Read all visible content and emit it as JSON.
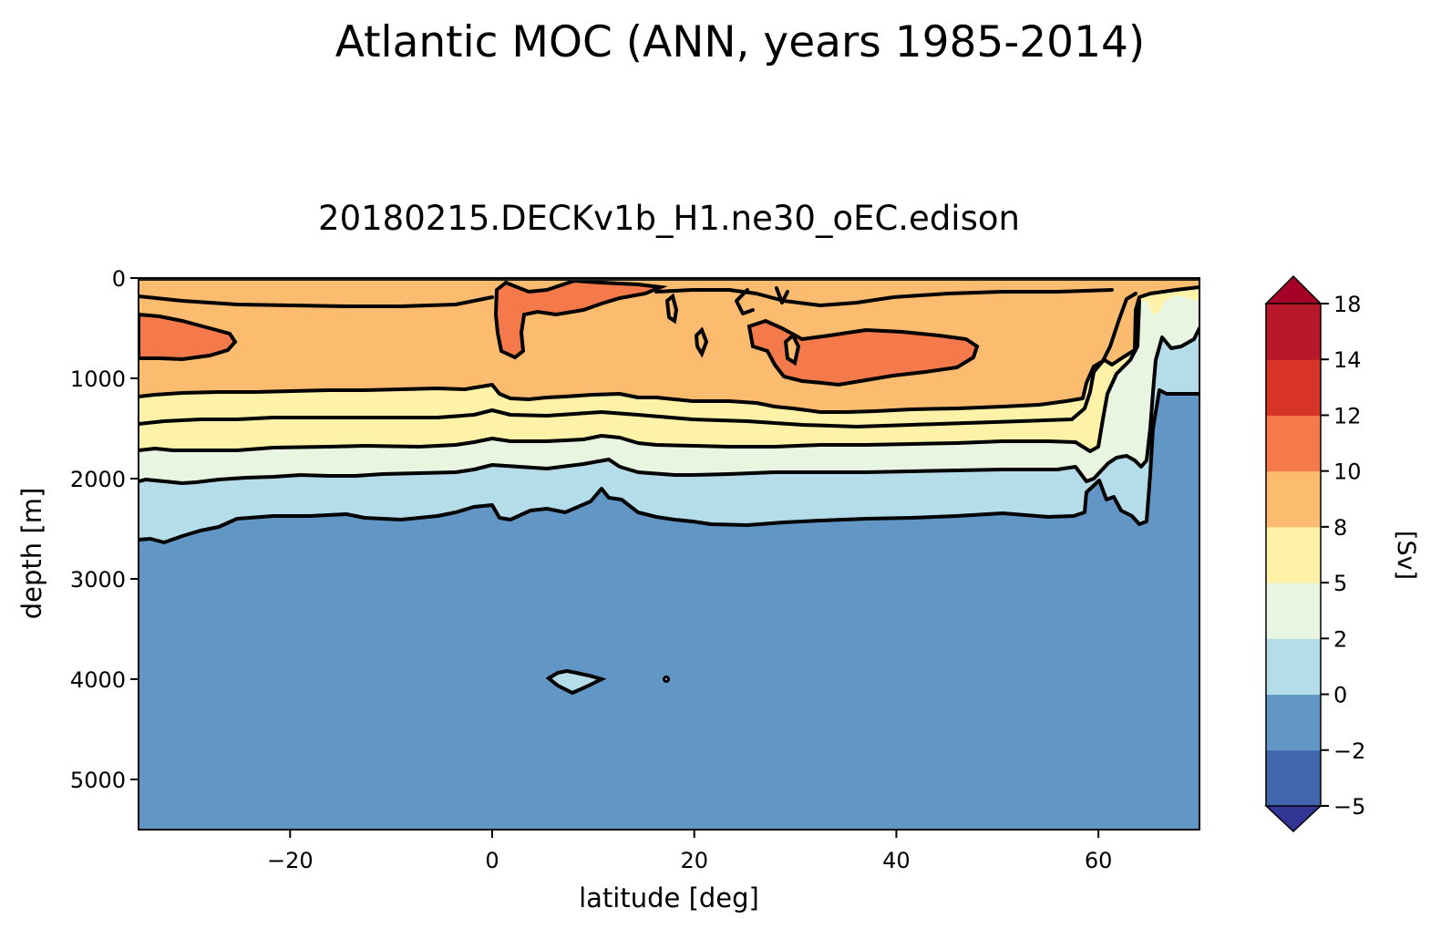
{
  "chart_data": {
    "type": "contour",
    "suptitle": "Atlantic MOC (ANN, years 1985-2014)",
    "title": "20180215.DECKv1b_H1.ne30_oEC.edison",
    "xlabel": "latitude [deg]",
    "ylabel": "depth [m]",
    "xlim": [
      -35,
      70
    ],
    "ylim": [
      5500,
      0
    ],
    "xticks": [
      -20,
      0,
      20,
      40,
      60
    ],
    "xtick_labels": [
      "−20",
      "0",
      "20",
      "40",
      "60"
    ],
    "yticks": [
      0,
      1000,
      2000,
      3000,
      4000,
      5000
    ],
    "ytick_labels": [
      "0",
      "1000",
      "2000",
      "3000",
      "4000",
      "5000"
    ],
    "colorbar": {
      "label": "[Sv]",
      "levels": [
        -5,
        -2,
        0,
        2,
        5,
        8,
        10,
        12,
        14,
        18
      ],
      "tick_labels": [
        "−5",
        "−2",
        "0",
        "2",
        "5",
        "8",
        "10",
        "12",
        "14",
        "18"
      ],
      "colors": [
        "#4166ad",
        "#6296c5",
        "#b5dde9",
        "#e8f5e1",
        "#fdf2a8",
        "#fbbc6f",
        "#f47a4b",
        "#d73427",
        "#b7192a"
      ],
      "under_color": "#313695",
      "over_color": "#a50026",
      "extend": "both"
    },
    "contour_levels_sv": [
      0,
      2,
      4,
      6,
      8,
      10,
      12
    ],
    "grid": false,
    "regions": [
      {
        "name": "negative cell below ~2400 m",
        "value_range": [
          -2,
          0
        ]
      },
      {
        "name": "northward overturning cell 0-2000 m",
        "value_range": [
          8,
          10
        ]
      },
      {
        "name": "maximum near 30-45 N, ~700 m",
        "value_range": [
          10,
          12
        ]
      },
      {
        "name": "maximum near 0-10 N, ~400 m",
        "value_range": [
          10,
          12
        ]
      },
      {
        "name": "maximum near 35 S, ~600 m",
        "value_range": [
          10,
          12
        ]
      }
    ]
  }
}
